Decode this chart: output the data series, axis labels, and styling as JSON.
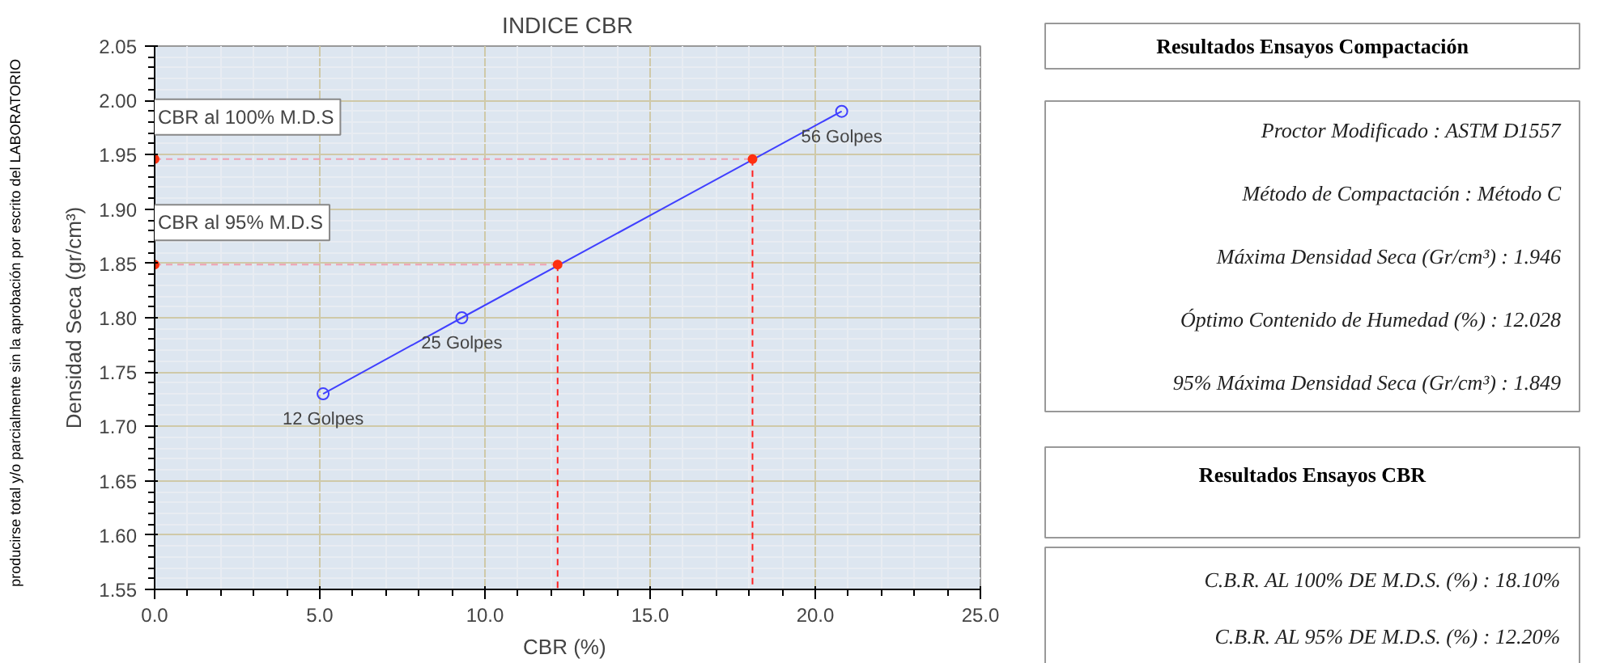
{
  "chart_data": [
    {
      "type": "line",
      "title": "INDICE CBR",
      "xlabel": "CBR  (%)",
      "ylabel": "Densidad Seca (gr/cm³)",
      "xlim": [
        0,
        25
      ],
      "ylim": [
        1.55,
        2.05
      ],
      "xticks": [
        {
          "value": 0,
          "label": "0.0"
        },
        {
          "value": 5,
          "label": "5.0"
        },
        {
          "value": 10,
          "label": "10.0"
        },
        {
          "value": 15,
          "label": "15.0"
        },
        {
          "value": 20,
          "label": "20.0"
        },
        {
          "value": 25,
          "label": "25.0"
        }
      ],
      "yticks": [
        1.55,
        {
          "value": 1.6,
          "label": "1.60"
        },
        1.65,
        {
          "value": 1.7,
          "label": "1.70"
        },
        1.75,
        {
          "value": 1.8,
          "label": "1.80"
        },
        1.85,
        {
          "value": 1.9,
          "label": "1.90"
        },
        1.95,
        {
          "value": 2.0,
          "label": "2.00"
        },
        2.05
      ],
      "grid": true,
      "series": [
        {
          "type": "line",
          "color": "#4040ff",
          "marker": "circle",
          "line_style": "solid",
          "x": [
            5.1,
            9.3,
            20.8
          ],
          "values": [
            1.73,
            1.8,
            1.99
          ]
        },
        {
          "type": "line",
          "color": "#f0a0b0",
          "marker": "none",
          "line_style": "dashed",
          "x": [
            0,
            18.1
          ],
          "values": [
            1.946,
            1.946
          ]
        },
        {
          "type": "line",
          "color": "#ff2020",
          "marker": "none",
          "line_style": "dashed",
          "x": [
            18.1,
            18.1
          ],
          "values": [
            1.946,
            1.55
          ]
        },
        {
          "type": "line",
          "color": "#f0a0b0",
          "marker": "none",
          "line_style": "dashed",
          "x": [
            0,
            12.2
          ],
          "values": [
            1.849,
            1.849
          ]
        },
        {
          "type": "line",
          "color": "#ff2020",
          "marker": "none",
          "line_style": "dashed",
          "x": [
            12.2,
            12.2
          ],
          "values": [
            1.849,
            1.55
          ]
        },
        {
          "type": "scatter",
          "color": "#ff3010",
          "marker": "circle",
          "x": [
            0,
            18.1,
            0,
            12.2
          ],
          "values": [
            1.946,
            1.946,
            1.849,
            1.849
          ]
        }
      ],
      "annotations": [
        {
          "text": "12 Golpes",
          "x": 5.1,
          "y": 1.73
        },
        {
          "text": "25 Golpes",
          "x": 9.3,
          "y": 1.8
        },
        {
          "text": "56 Golpes",
          "x": 20.8,
          "y": 1.99
        },
        {
          "text": "CBR al 100% M.D.S",
          "x": 0,
          "y": 1.946
        },
        {
          "text": "CBR al 95% M.D.S",
          "x": 0,
          "y": 1.849
        },
        "producirse total y/o parcialmente sin la aprobación por escrito del LABORATORIO"
      ]
    },
    {
      "type": "other",
      "title": "Resultados Ensayos Compactación",
      "subtitle": "Resultados Ensayos CBR",
      "annotations": [
        "Proctor Modificado  :  ASTM D1557",
        "Método de Compactación  :  Método C",
        "Máxima Densidad Seca (Gr/cm³)  :  1.946",
        "Óptimo Contenido de Humedad (%)  :  12.028",
        "95% Máxima Densidad Seca (Gr/cm³)  :  1.849",
        "C.B.R. AL 100% DE M.D.S. (%)  :  18.10%",
        "C.B.R. AL 95% DE M.D.S. (%)  :  12.20%"
      ]
    }
  ]
}
